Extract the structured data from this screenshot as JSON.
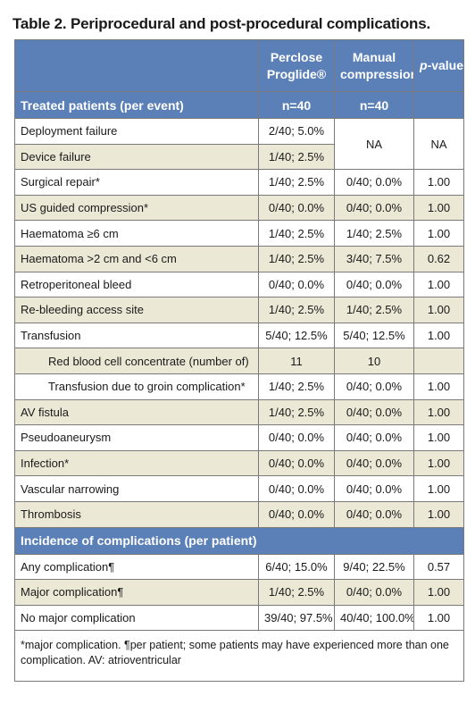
{
  "title": "Table 2. Periprocedural and post-procedural complications.",
  "header": {
    "col1_line1": "Perclose",
    "col1_line2": "Proglide®",
    "col2_line1": "Manual",
    "col2_line2": "compression",
    "col3_p": "p",
    "col3_rest": "-value"
  },
  "section1": {
    "label": "Treated patients (per event)",
    "n1": "n=40",
    "n2": "n=40"
  },
  "rows1": [
    {
      "label": "Deployment failure",
      "a": "2/40; 5.0%",
      "b": "NA",
      "p": "NA"
    },
    {
      "label": "Device failure",
      "a": "1/40; 2.5%"
    },
    {
      "label": "Surgical repair*",
      "a": "1/40; 2.5%",
      "b": "0/40; 0.0%",
      "p": "1.00"
    },
    {
      "label": "US guided compression*",
      "a": "0/40; 0.0%",
      "b": "0/40; 0.0%",
      "p": "1.00"
    },
    {
      "label": "Haematoma ≥6 cm",
      "a": "1/40; 2.5%",
      "b": "1/40; 2.5%",
      "p": "1.00"
    },
    {
      "label": "Haematoma >2 cm and <6 cm",
      "a": "1/40; 2.5%",
      "b": "3/40; 7.5%",
      "p": "0.62"
    },
    {
      "label": "Retroperitoneal bleed",
      "a": "0/40; 0.0%",
      "b": "0/40; 0.0%",
      "p": "1.00"
    },
    {
      "label": "Re-bleeding access site",
      "a": "1/40; 2.5%",
      "b": "1/40; 2.5%",
      "p": "1.00"
    },
    {
      "label": "Transfusion",
      "a": "5/40; 12.5%",
      "b": "5/40; 12.5%",
      "p": "1.00"
    },
    {
      "label": "Red blood cell concentrate (number of)",
      "a": "11",
      "b": "10",
      "p": ""
    },
    {
      "label": "Transfusion due to groin complication*",
      "a": "1/40; 2.5%",
      "b": "0/40; 0.0%",
      "p": "1.00"
    },
    {
      "label": "AV fistula",
      "a": "1/40; 2.5%",
      "b": "0/40; 0.0%",
      "p": "1.00"
    },
    {
      "label": "Pseudoaneurysm",
      "a": "0/40; 0.0%",
      "b": "0/40; 0.0%",
      "p": "1.00"
    },
    {
      "label": "Infection*",
      "a": "0/40; 0.0%",
      "b": "0/40; 0.0%",
      "p": "1.00"
    },
    {
      "label": "Vascular narrowing",
      "a": "0/40; 0.0%",
      "b": "0/40; 0.0%",
      "p": "1.00"
    },
    {
      "label": "Thrombosis",
      "a": "0/40; 0.0%",
      "b": "0/40; 0.0%",
      "p": "1.00"
    }
  ],
  "section2": {
    "label": "Incidence of complications (per patient)"
  },
  "rows2": [
    {
      "label": "Any complication¶",
      "a": "6/40; 15.0%",
      "b": "9/40; 22.5%",
      "p": "0.57"
    },
    {
      "label": "Major complication¶",
      "a": "1/40; 2.5%",
      "b": "0/40; 0.0%",
      "p": "1.00"
    },
    {
      "label": "No major complication",
      "a": "39/40; 97.5%",
      "b": "40/40; 100.0%",
      "p": "1.00"
    }
  ],
  "footnote": "*major complication. ¶per patient; some patients may have experienced more than one complication. AV: atrioventricular",
  "colors": {
    "header_bg": "#5b80b8",
    "stripe_bg": "#ece8d6",
    "header_text": "#ffffff"
  }
}
